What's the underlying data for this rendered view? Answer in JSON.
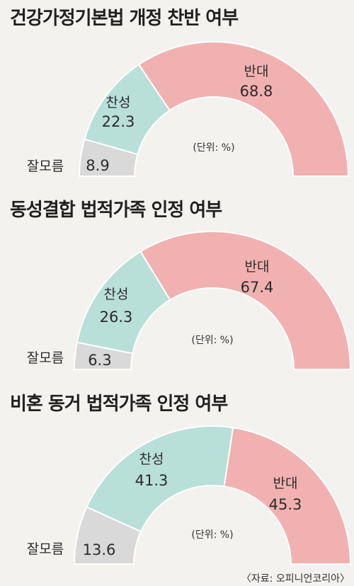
{
  "unit_label": "(단위: %)",
  "source": "〈자료: 오피니언코리아〉",
  "colors": {
    "oppose": "#f2b1b1",
    "support": "#b9dfd9",
    "unknown": "#d9d9d9",
    "background": "#f3f2ef"
  },
  "chart_data": [
    {
      "type": "pie",
      "shape": "semicircle-donut",
      "title": "건강가정기본법 개정 찬반 여부",
      "categories": [
        "잘모름",
        "찬성",
        "반대"
      ],
      "values": [
        8.9,
        22.3,
        68.8
      ]
    },
    {
      "type": "pie",
      "shape": "semicircle-donut",
      "title": "동성결합 법적가족 인정 여부",
      "categories": [
        "잘모름",
        "찬성",
        "반대"
      ],
      "values": [
        6.3,
        26.3,
        67.4
      ]
    },
    {
      "type": "pie",
      "shape": "semicircle-donut",
      "title": "비혼 동거 법적가족 인정 여부",
      "categories": [
        "잘모름",
        "찬성",
        "반대"
      ],
      "values": [
        13.6,
        41.3,
        45.3
      ]
    }
  ]
}
